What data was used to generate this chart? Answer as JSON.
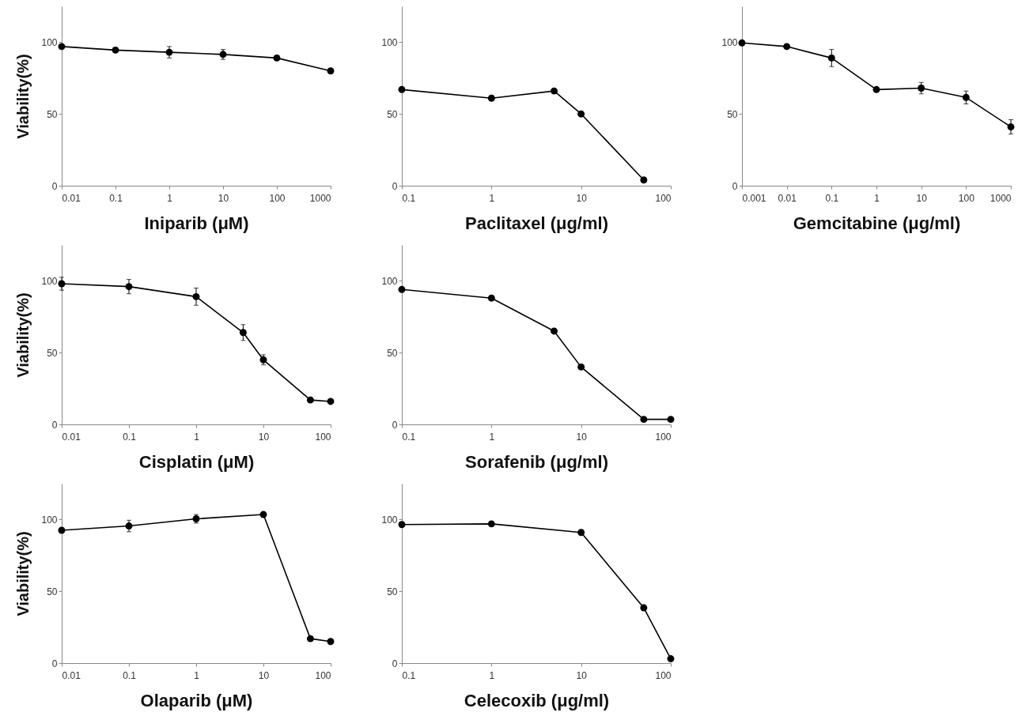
{
  "chart_data": [
    {
      "type": "line",
      "xlabel": "Iniparib (μM)",
      "ylabel": "Viability(%)",
      "log": "x",
      "x": [
        0.01,
        0.1,
        1,
        10,
        100,
        1000
      ],
      "values": [
        97,
        94.5,
        93,
        91.5,
        89,
        80
      ],
      "errors": [
        null,
        null,
        4,
        3.5,
        1.5,
        null
      ],
      "color": "#000000",
      "marker": "circle",
      "line_style": "solid",
      "xlim": [
        0.01,
        1000
      ],
      "xticks": [
        0.01,
        0.1,
        1,
        10,
        100,
        1000
      ],
      "ylim": [
        0,
        125
      ],
      "yticks": [
        0,
        50,
        100
      ]
    },
    {
      "type": "line",
      "xlabel": "Paclitaxel (μg/ml)",
      "log": "x",
      "x": [
        0.1,
        1,
        5,
        10,
        50
      ],
      "values": [
        67,
        61,
        66,
        50,
        4
      ],
      "color": "#000000",
      "marker": "circle",
      "line_style": "solid",
      "xlim": [
        0.1,
        100
      ],
      "xticks": [
        0.1,
        1,
        10,
        100
      ],
      "ylim": [
        0,
        125
      ],
      "yticks": [
        0,
        50,
        100
      ]
    },
    {
      "type": "line",
      "xlabel": "Gemcitabine (μg/ml)",
      "log": "x",
      "x": [
        0.001,
        0.01,
        0.1,
        1,
        10,
        100,
        1000
      ],
      "values": [
        99.5,
        97,
        89,
        67,
        68,
        61.5,
        41
      ],
      "errors": [
        null,
        null,
        6,
        null,
        4,
        4.5,
        5
      ],
      "color": "#000000",
      "marker": "circle",
      "line_style": "solid",
      "xlim": [
        0.001,
        1000
      ],
      "xticks": [
        0.001,
        0.01,
        0.1,
        1,
        10,
        100,
        1000
      ],
      "ylim": [
        0,
        125
      ],
      "yticks": [
        0,
        50,
        100
      ]
    },
    {
      "type": "line",
      "xlabel": "Cisplatin (μM)",
      "ylabel": "Viability(%)",
      "log": "x",
      "x": [
        0.01,
        0.1,
        1,
        5,
        10,
        50,
        100
      ],
      "values": [
        98,
        96,
        89,
        64,
        45,
        17,
        16
      ],
      "errors": [
        4.5,
        5,
        6,
        5.5,
        3.5,
        null,
        null
      ],
      "color": "#000000",
      "marker": "circle",
      "line_style": "solid",
      "xlim": [
        0.01,
        100
      ],
      "xticks": [
        0.01,
        0.1,
        1,
        10,
        100
      ],
      "ylim": [
        0,
        125
      ],
      "yticks": [
        0,
        50,
        100
      ]
    },
    {
      "type": "line",
      "xlabel": "Sorafenib (μg/ml)",
      "log": "x",
      "x": [
        0.1,
        1,
        5,
        10,
        50,
        100
      ],
      "values": [
        94,
        88,
        65,
        40,
        3.5,
        3.5
      ],
      "color": "#000000",
      "marker": "circle",
      "line_style": "solid",
      "xlim": [
        0.1,
        100
      ],
      "xticks": [
        0.1,
        1,
        10,
        100
      ],
      "ylim": [
        0,
        125
      ],
      "yticks": [
        0,
        50,
        100
      ]
    },
    {
      "type": "line",
      "xlabel": "Olaparib (μM)",
      "ylabel": "Viability(%)",
      "log": "x",
      "x": [
        0.01,
        0.1,
        1,
        10,
        50,
        100
      ],
      "values": [
        92.5,
        95.5,
        100.5,
        103.5,
        17,
        15
      ],
      "errors": [
        null,
        4,
        3,
        null,
        null,
        null
      ],
      "color": "#000000",
      "marker": "circle",
      "line_style": "solid",
      "xlim": [
        0.01,
        100
      ],
      "xticks": [
        0.01,
        0.1,
        1,
        10,
        100
      ],
      "ylim": [
        0,
        125
      ],
      "yticks": [
        0,
        50,
        100
      ]
    },
    {
      "type": "line",
      "xlabel": "Celecoxib (μg/ml)",
      "log": "x",
      "x": [
        0.1,
        1,
        10,
        50,
        100
      ],
      "values": [
        96.5,
        97,
        91,
        38.5,
        3
      ],
      "color": "#000000",
      "marker": "circle",
      "line_style": "solid",
      "xlim": [
        0.1,
        100
      ],
      "xticks": [
        0.1,
        1,
        10,
        100
      ],
      "ylim": [
        0,
        125
      ],
      "yticks": [
        0,
        50,
        100
      ]
    }
  ]
}
